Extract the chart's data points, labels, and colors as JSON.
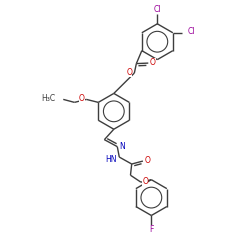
{
  "bg_color": "#ffffff",
  "bond_color": "#3d3d3d",
  "o_color": "#cc0000",
  "n_color": "#0000bb",
  "cl_color": "#990099",
  "f_color": "#990099",
  "lw": 1.0,
  "fs": 5.5,
  "figsize": [
    2.5,
    2.5
  ],
  "dpi": 100,
  "xlim": [
    0,
    10
  ],
  "ylim": [
    0,
    10
  ]
}
